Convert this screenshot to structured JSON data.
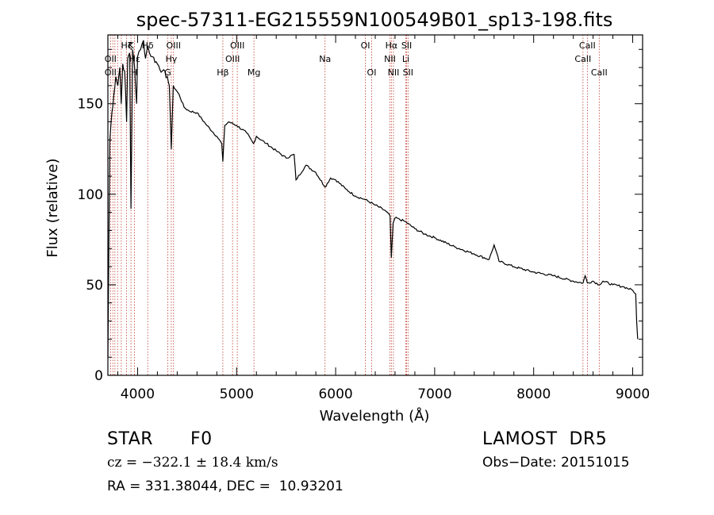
{
  "chart_data": {
    "type": "line",
    "title": "spec-57311-EG215559N100549B01_sp13-198.fits",
    "xlabel": "Wavelength (Å)",
    "ylabel": "Flux (relative)",
    "xlim": [
      3700,
      9100
    ],
    "ylim": [
      0,
      188
    ],
    "x_ticks": [
      4000,
      5000,
      6000,
      7000,
      8000,
      9000
    ],
    "y_ticks": [
      0,
      50,
      100,
      150
    ],
    "grid": false,
    "series": [
      {
        "values_note": "",
        "x": [
          3700,
          3720,
          3740,
          3760,
          3780,
          3800,
          3820,
          3835,
          3850,
          3870,
          3889,
          3900,
          3920,
          3933,
          3950,
          3970,
          3990,
          4000,
          4030,
          4060,
          4080,
          4102,
          4120,
          4150,
          4200,
          4250,
          4300,
          4320,
          4340,
          4360,
          4380,
          4420,
          4470,
          4520,
          4600,
          4700,
          4800,
          4850,
          4861,
          4880,
          4920,
          5000,
          5100,
          5170,
          5200,
          5300,
          5400,
          5500,
          5580,
          5600,
          5700,
          5800,
          5893,
          5950,
          6000,
          6100,
          6200,
          6300,
          6400,
          6500,
          6550,
          6563,
          6580,
          6600,
          6700,
          6800,
          6900,
          7000,
          7200,
          7400,
          7550,
          7600,
          7650,
          7800,
          8000,
          8200,
          8400,
          8498,
          8520,
          8542,
          8600,
          8662,
          8700,
          8800,
          8900,
          9000,
          9030,
          9040,
          9050
        ],
        "y": [
          10,
          130,
          145,
          155,
          165,
          160,
          170,
          150,
          172,
          168,
          140,
          175,
          178,
          92,
          180,
          170,
          150,
          176,
          180,
          185,
          175,
          182,
          178,
          176,
          172,
          168,
          165,
          160,
          125,
          160,
          158,
          155,
          148,
          146,
          145,
          138,
          132,
          128,
          118,
          138,
          140,
          138,
          134,
          128,
          132,
          128,
          124,
          120,
          122,
          108,
          116,
          112,
          104,
          109,
          108,
          103,
          99,
          97,
          94,
          91,
          88,
          65,
          84,
          87,
          85,
          81,
          78,
          76,
          71,
          67,
          64,
          72,
          63,
          60,
          57,
          55,
          52,
          51,
          55,
          51,
          52,
          50,
          52,
          50,
          49,
          47,
          45,
          30,
          20
        ]
      }
    ],
    "line_labels": [
      {
        "text": "Hζ",
        "x": 3889,
        "row": 0
      },
      {
        "text": "OII",
        "x": 3727,
        "row": 1
      },
      {
        "text": "Hε",
        "x": 3970,
        "row": 1
      },
      {
        "text": "OII",
        "x": 3727,
        "row": 2
      },
      {
        "text": "K",
        "x": 3933,
        "row": 0
      },
      {
        "text": "H",
        "x": 3968,
        "row": 2
      },
      {
        "text": "Hδ",
        "x": 4102,
        "row": 0
      },
      {
        "text": "OIII",
        "x": 4363,
        "row": 0
      },
      {
        "text": "Hγ",
        "x": 4340,
        "row": 1
      },
      {
        "text": "G",
        "x": 4305,
        "row": 2
      },
      {
        "text": "OIII",
        "x": 5007,
        "row": 0
      },
      {
        "text": "OIII",
        "x": 4959,
        "row": 1
      },
      {
        "text": "Hβ",
        "x": 4861,
        "row": 2
      },
      {
        "text": "Mg",
        "x": 5175,
        "row": 2
      },
      {
        "text": "Na",
        "x": 5893,
        "row": 1
      },
      {
        "text": "OI",
        "x": 6300,
        "row": 0
      },
      {
        "text": "OI",
        "x": 6364,
        "row": 2
      },
      {
        "text": "Hα",
        "x": 6563,
        "row": 0
      },
      {
        "text": "NII",
        "x": 6548,
        "row": 1
      },
      {
        "text": "NII",
        "x": 6584,
        "row": 2
      },
      {
        "text": "SII",
        "x": 6717,
        "row": 0
      },
      {
        "text": "Li",
        "x": 6708,
        "row": 1
      },
      {
        "text": "SII",
        "x": 6731,
        "row": 2
      },
      {
        "text": "CaII",
        "x": 8542,
        "row": 0
      },
      {
        "text": "CaII",
        "x": 8498,
        "row": 1
      },
      {
        "text": "CaII",
        "x": 8662,
        "row": 2
      }
    ],
    "line_marks": [
      3727,
      3750,
      3771,
      3798,
      3835,
      3889,
      3933,
      3968,
      4102,
      4305,
      4340,
      4363,
      4861,
      4959,
      5007,
      5175,
      5893,
      6300,
      6364,
      6548,
      6563,
      6584,
      6708,
      6717,
      6731,
      8498,
      8542,
      8662
    ],
    "colors": {
      "spectrum": "#000000",
      "markers": "#c0392b",
      "axes": "#000000"
    }
  },
  "info": {
    "class": "STAR",
    "subclass": "F0",
    "survey": "LAMOST  DR5",
    "cz": "cz = −322.1 ± 18.4 km/s",
    "obs_date": "Obs−Date: 20151015",
    "coords": "RA = 331.38044, DEC =  10.93201"
  }
}
